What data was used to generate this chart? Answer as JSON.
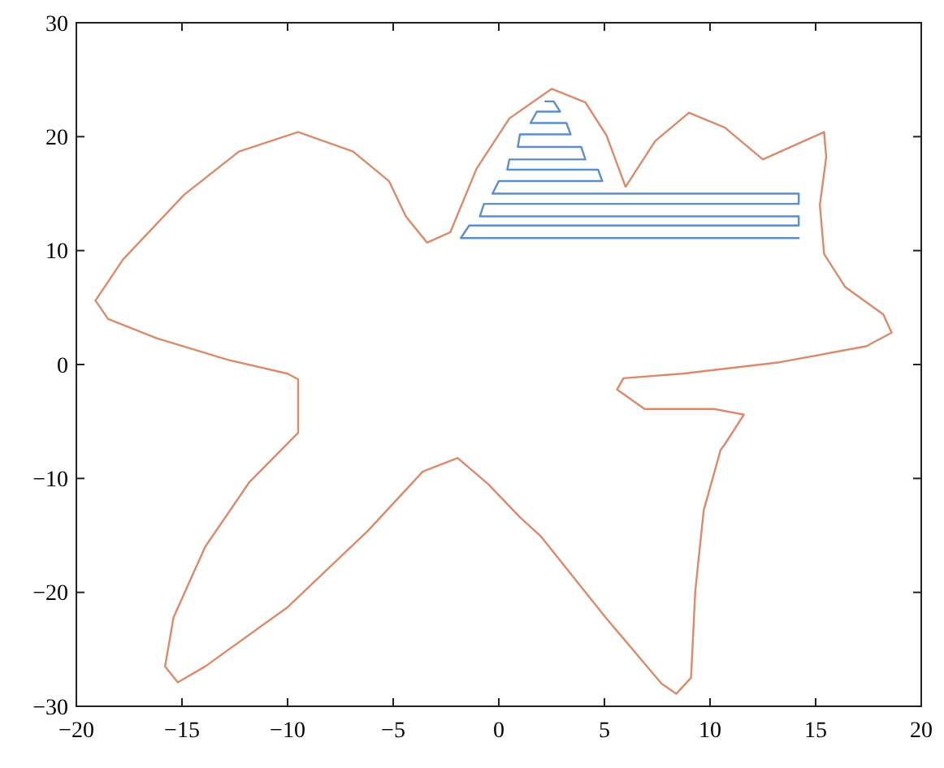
{
  "chart_data": {
    "type": "line",
    "xlim": [
      -20,
      20
    ],
    "xticks": [
      -20,
      -15,
      -10,
      -5,
      0,
      5,
      10,
      15,
      20
    ],
    "ylim": [
      -30,
      30
    ],
    "yticks": [
      -30,
      -20,
      -10,
      0,
      10,
      20,
      30
    ],
    "grid": false,
    "marker": "none",
    "line_style": "solid",
    "series": [
      {
        "color": "#d98b6c",
        "x": [
          -19.1,
          -17.8,
          -14.9,
          -12.3,
          -9.5,
          -6.9,
          -5.2,
          -4.4,
          -3.4,
          -2.3,
          -1.05,
          0.5,
          2.5,
          4.1,
          5.1,
          6.0,
          7.4,
          9.0,
          10.7,
          12.5,
          15.4,
          15.5,
          15.2,
          15.4,
          16.4,
          18.2,
          18.6,
          17.4,
          13.3,
          8.7,
          5.9,
          5.6,
          6.9,
          10.2,
          11.6,
          10.7,
          10.5,
          9.7,
          9.3,
          9.1,
          8.4,
          7.7,
          5.1,
          2.0,
          1.0,
          -0.5,
          -1.95,
          -3.6,
          -6.2,
          -10.0,
          -13.9,
          -15.2,
          -15.8,
          -15.4,
          -13.9,
          -11.8,
          -9.5,
          -9.5,
          -10.0,
          -12.8,
          -16.2,
          -18.5,
          -19.05
        ],
        "values": [
          5.6,
          9.2,
          14.9,
          18.7,
          20.4,
          18.7,
          16.1,
          13.0,
          10.7,
          11.6,
          17.2,
          21.6,
          24.2,
          23.0,
          20.1,
          15.6,
          19.6,
          22.1,
          20.8,
          18.0,
          20.4,
          18.2,
          14.0,
          9.7,
          6.8,
          4.4,
          2.8,
          1.6,
          0.2,
          -0.8,
          -1.2,
          -2.2,
          -3.9,
          -3.9,
          -4.4,
          -7.0,
          -7.5,
          -12.8,
          -19.9,
          -27.5,
          -28.9,
          -28.0,
          -22.3,
          -15.1,
          -13.4,
          -10.5,
          -8.2,
          -9.4,
          -14.6,
          -21.3,
          -26.5,
          -27.9,
          -26.5,
          -22.2,
          -16.0,
          -10.3,
          -6.0,
          -1.3,
          -0.8,
          0.4,
          2.3,
          4.0,
          5.5
        ]
      },
      {
        "color": "#5b8fc7",
        "x": [
          14.2,
          -1.8,
          -1.4,
          14.2,
          14.2,
          -0.9,
          -0.7,
          14.2,
          14.2,
          -0.3,
          0.0,
          4.9,
          4.7,
          0.4,
          0.5,
          4.1,
          3.9,
          0.9,
          1.0,
          3.4,
          3.2,
          1.5,
          1.8,
          2.9,
          2.6,
          2.2
        ],
        "values": [
          11.1,
          11.1,
          12.2,
          12.2,
          13.0,
          13.0,
          14.1,
          14.1,
          15.0,
          15.0,
          16.1,
          16.1,
          17.1,
          17.1,
          18.0,
          18.0,
          19.1,
          19.1,
          20.2,
          20.2,
          21.2,
          21.2,
          22.2,
          22.2,
          23.1,
          23.1
        ]
      }
    ]
  }
}
